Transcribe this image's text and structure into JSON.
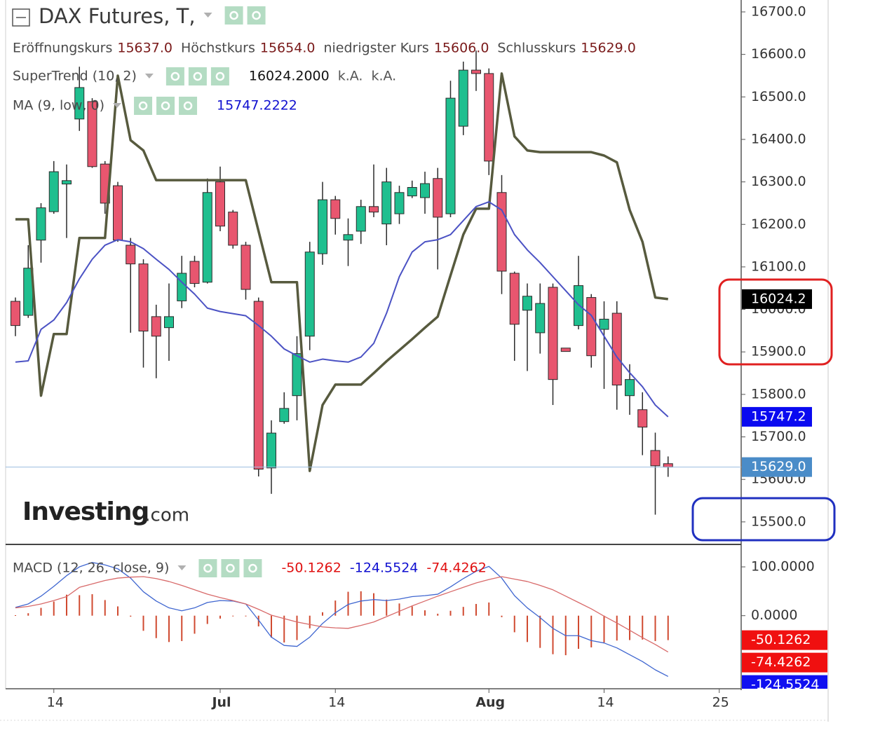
{
  "chart_data": [
    {
      "type": "candlestick",
      "title": "DAX Futures, T,",
      "ohlc_legend": [
        {
          "label": "Eröffnungskurs",
          "value": "15637.0"
        },
        {
          "label": "Höchstkurs",
          "value": "15654.0"
        },
        {
          "label": "niedrigster Kurs",
          "value": "15606.0"
        },
        {
          "label": "Schlusskurs",
          "value": "15629.0"
        }
      ],
      "watermark": "Investing",
      "watermark_suffix": ".com",
      "categories": [
        null,
        null,
        null,
        "14",
        null,
        null,
        null,
        null,
        null,
        null,
        null,
        null,
        null,
        null,
        null,
        null,
        "Jul",
        null,
        null,
        null,
        null,
        null,
        null,
        null,
        null,
        "14",
        null,
        null,
        null,
        null,
        null,
        null,
        null,
        null,
        null,
        null,
        null,
        "Aug",
        null,
        null,
        null,
        null,
        null,
        null,
        null,
        null,
        "14",
        null,
        null,
        null,
        null,
        null,
        null,
        null,
        null,
        "25"
      ],
      "open": [
        16019,
        15986,
        16163,
        16230,
        16295,
        16448,
        16489,
        16342,
        16291,
        16151,
        16107,
        15983,
        15957,
        16020,
        16113,
        16064,
        16300,
        16229,
        16151,
        16019,
        15627,
        15736,
        15797,
        15937,
        16131,
        16258,
        16163,
        16184,
        16242,
        16201,
        16225,
        16267,
        16263,
        16308,
        16225,
        16431,
        16563,
        16555,
        16275,
        16085,
        15998,
        15945,
        16052,
        15909,
        15962,
        16028,
        15953,
        15991,
        15797,
        15764,
        15668,
        15637,
        null,
        null,
        null,
        null
      ],
      "high": [
        16028,
        16151,
        16250,
        16349,
        16341,
        16571,
        16497,
        16349,
        16300,
        16168,
        16118,
        16011,
        16061,
        16126,
        16126,
        16308,
        16336,
        16234,
        16159,
        16028,
        15739,
        15805,
        15937,
        16159,
        16300,
        16267,
        16214,
        16258,
        16341,
        16333,
        16291,
        16303,
        16324,
        16333,
        16538,
        16583,
        16609,
        16567,
        16316,
        16089,
        16061,
        16061,
        16061,
        15909,
        16126,
        16036,
        16019,
        16019,
        15871,
        15805,
        15710,
        15654,
        null,
        null,
        null,
        null
      ],
      "low": [
        15937,
        15980,
        16110,
        16225,
        16168,
        16420,
        16333,
        16225,
        16159,
        15945,
        15863,
        15838,
        15879,
        16003,
        16052,
        16061,
        16184,
        16143,
        16023,
        15607,
        15566,
        15731,
        15739,
        15904,
        16105,
        16176,
        16102,
        16154,
        16217,
        16151,
        16201,
        16262,
        16225,
        16094,
        16217,
        16410,
        16514,
        16316,
        16036,
        15879,
        15855,
        15896,
        15775,
        15901,
        15953,
        15863,
        15813,
        15764,
        15752,
        15657,
        15517,
        15606,
        null,
        null,
        null,
        null
      ],
      "close": [
        15962,
        16097,
        16239,
        16324,
        16303,
        16522,
        16336,
        16250,
        16163,
        16107,
        15949,
        15937,
        15983,
        16085,
        16061,
        16275,
        16196,
        16151,
        16047,
        15624,
        15709,
        15767,
        15896,
        16135,
        16258,
        16214,
        16176,
        16242,
        16229,
        16300,
        16275,
        16287,
        16296,
        16217,
        16497,
        16563,
        16555,
        16349,
        16090,
        15965,
        16031,
        16014,
        15835,
        15901,
        16056,
        15891,
        15977,
        15822,
        15835,
        15723,
        15632,
        15629,
        null,
        null,
        null,
        null
      ],
      "up_color": "#1fbf8f",
      "down_color": "#e8566f",
      "outline_color": "#2b2b2b",
      "last_label": "15629.0",
      "tag_color": "#4a8cc8",
      "series": [
        {
          "name": "SuperTrend (10, 2)",
          "color": "#575a3e",
          "width": 3.5,
          "legend_values": [
            "16024.2000",
            "k.A.",
            "k.A."
          ],
          "legend_color": "#111111",
          "last_label": "16024.2",
          "tag_color": "#000000",
          "values": [
            16212,
            16212,
            15797,
            15942,
            15942,
            16168,
            16168,
            16168,
            16550,
            16398,
            16374,
            16304,
            16304,
            16304,
            16304,
            16304,
            16304,
            16304,
            16304,
            16184,
            16064,
            16064,
            16064,
            15620,
            15775,
            15823,
            15823,
            15823,
            15850,
            15878,
            15904,
            15930,
            15957,
            15983,
            16080,
            16176,
            16237,
            16237,
            16555,
            16407,
            16374,
            16370,
            16370,
            16370,
            16370,
            16370,
            16362,
            16346,
            16234,
            16159,
            16028,
            16024.2,
            null,
            null,
            null,
            null
          ]
        },
        {
          "name": "MA (9, low, 0)",
          "color": "#4b52c4",
          "width": 2,
          "legend_values": [
            "15747.2222"
          ],
          "legend_color": "#1010d0",
          "last_label": "15747.2",
          "tag_color": "#0a0af0",
          "values": [
            15876,
            15879,
            15953,
            15975,
            16016,
            16072,
            16118,
            16151,
            16164,
            16159,
            16143,
            16118,
            16094,
            16064,
            16036,
            16003,
            15995,
            15990,
            15985,
            15962,
            15937,
            15907,
            15891,
            15876,
            15883,
            15879,
            15876,
            15888,
            15920,
            15991,
            16077,
            16135,
            16159,
            16164,
            16176,
            16209,
            16242,
            16253,
            16234,
            16176,
            16140,
            16110,
            16077,
            16044,
            16011,
            15986,
            15937,
            15888,
            15851,
            15818,
            15775,
            15747.2222,
            null,
            null,
            null,
            null
          ]
        }
      ],
      "ylim": [
        15447,
        16728
      ],
      "yticks": [
        {
          "value": 15500,
          "label": "15500.0"
        },
        {
          "value": 15600,
          "label": "15600.0"
        },
        {
          "value": 15700,
          "label": "15700.0"
        },
        {
          "value": 15800,
          "label": "15800.0"
        },
        {
          "value": 15900,
          "label": "15900.0"
        },
        {
          "value": 16000,
          "label": "16000.0"
        },
        {
          "value": 16100,
          "label": "16100.0"
        },
        {
          "value": 16200,
          "label": "16200.0"
        },
        {
          "value": 16300,
          "label": "16300.0"
        },
        {
          "value": 16400,
          "label": "16400.0"
        },
        {
          "value": 16500,
          "label": "16500.0"
        },
        {
          "value": 16600,
          "label": "16600.0"
        },
        {
          "value": 16700,
          "label": "16700.0"
        }
      ]
    },
    {
      "type": "macd",
      "title": "MACD (12, 26, close, 9)",
      "series": [
        {
          "type": "bar",
          "color": "#d04a30",
          "legend_value": "-50.1262",
          "last_label": "-50.1262",
          "tag_color": "#f01010",
          "values": [
            1,
            5,
            16,
            29,
            43,
            42,
            44,
            32,
            19,
            -2,
            -31,
            -46,
            -54,
            -52,
            -37,
            -17,
            -6,
            -1,
            0,
            -22,
            -45,
            -55,
            -50,
            -26,
            7,
            31,
            49,
            50,
            46,
            33,
            25,
            19,
            11,
            4,
            10,
            18,
            24,
            27,
            -3,
            -34,
            -54,
            -66,
            -79,
            -81,
            -68,
            -65,
            -55,
            -51,
            -50,
            -49,
            -52,
            -50.1262,
            null,
            null,
            null,
            null
          ]
        },
        {
          "type": "line",
          "color": "#3f66d0",
          "legend_value": "-124.5524",
          "last_label": "-124.5524",
          "tag_color": "#1010f0",
          "values": [
            17,
            24,
            40,
            60,
            82,
            100,
            109,
            104,
            96,
            77,
            49,
            30,
            16,
            10,
            16,
            27,
            31,
            30,
            24,
            -9,
            -44,
            -61,
            -63,
            -44,
            -16,
            6,
            23,
            30,
            33,
            31,
            34,
            39,
            41,
            44,
            59,
            76,
            91,
            101,
            77,
            41,
            16,
            -4,
            -26,
            -41,
            -41,
            -51,
            -56,
            -66,
            -80,
            -94,
            -111,
            -124.5524,
            null,
            null,
            null,
            null
          ]
        },
        {
          "type": "line",
          "color": "#d86a6a",
          "legend_value": "-74.4262",
          "last_label": "-74.4262",
          "tag_color": "#f01010",
          "values": [
            16,
            19,
            24,
            31,
            39,
            58,
            65,
            72,
            77,
            79,
            80,
            76,
            70,
            62,
            53,
            44,
            37,
            31,
            24,
            13,
            1,
            -6,
            -13,
            -18,
            -23,
            -25,
            -26,
            -20,
            -13,
            -2,
            9,
            20,
            30,
            40,
            49,
            58,
            67,
            74,
            80,
            75,
            70,
            62,
            53,
            40,
            27,
            14,
            -1,
            -15,
            -30,
            -45,
            -59,
            -74.4262,
            null,
            null,
            null,
            null
          ]
        }
      ],
      "ylim": [
        -144,
        146
      ],
      "yticks": [
        {
          "value": 0,
          "label": "0.0000"
        },
        {
          "value": 100,
          "label": "100.0000"
        }
      ]
    }
  ]
}
